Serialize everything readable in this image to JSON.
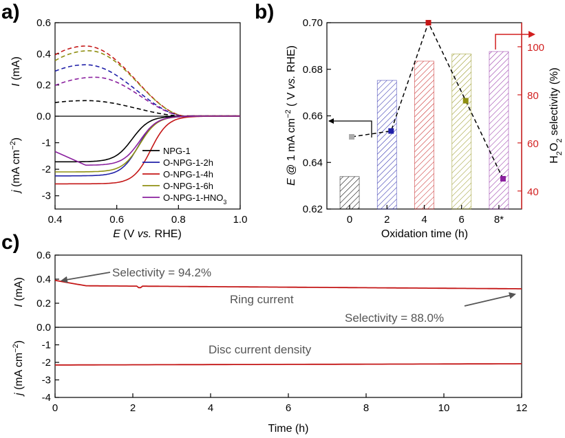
{
  "panels": {
    "a": "a)",
    "b": "b)",
    "c": "c)"
  },
  "colors": {
    "black": "#000000",
    "blue": "#1f1fa8",
    "red": "#c41616",
    "olive": "#8f8f12",
    "purple": "#8a1f9e",
    "accent_red": "#d21f1f",
    "annotation": "#555555",
    "gray_marker": "#aaaaaa"
  },
  "chart_data": [
    {
      "id": "a",
      "type": "line",
      "title": "",
      "xlabel": {
        "var": "E",
        "open": " (V ",
        "vs": "vs.",
        "close": " RHE)"
      },
      "xlim": [
        0.4,
        1.0
      ],
      "xticks": [
        "0.4",
        "0.6",
        "0.8",
        "1.0"
      ],
      "top": {
        "ylabel": {
          "var": "I",
          "unit": " (mA)"
        },
        "ylim": [
          0,
          0.6
        ],
        "yticks": [
          "0.0",
          "0.2",
          "0.4",
          "0.6"
        ],
        "style": "dashed",
        "series": [
          {
            "name": "NPG-1",
            "color": "#000000",
            "peak": 0.1,
            "peak_x": 0.5
          },
          {
            "name": "O-NPG-1-2h",
            "color": "#1f1fa8",
            "peak": 0.33,
            "peak_x": 0.5
          },
          {
            "name": "O-NPG-1-4h",
            "color": "#c41616",
            "peak": 0.45,
            "peak_x": 0.5
          },
          {
            "name": "O-NPG-1-6h",
            "color": "#8f8f12",
            "peak": 0.42,
            "peak_x": 0.51
          },
          {
            "name": "O-NPG-1-HNO3",
            "color": "#8a1f9e",
            "peak": 0.25,
            "peak_x": 0.53
          }
        ]
      },
      "bottom": {
        "ylabel": {
          "var": "j",
          "unit": " (mA cm",
          "sup": "−2",
          "close": ")"
        },
        "ylim": [
          -3.5,
          0
        ],
        "yticks": [
          "-1",
          "-2",
          "-3"
        ],
        "series": [
          {
            "name": "NPG-1",
            "color": "#000000",
            "limit": -1.72,
            "onset": 0.72
          },
          {
            "name": "O-NPG-1-2h",
            "color": "#1f1fa8",
            "limit": -2.25,
            "onset": 0.74
          },
          {
            "name": "O-NPG-1-4h",
            "color": "#c41616",
            "limit": -2.55,
            "onset": 0.78
          },
          {
            "name": "O-NPG-1-6h",
            "color": "#8f8f12",
            "limit": -2.1,
            "onset": 0.745
          },
          {
            "name": "O-NPG-1-HNO3",
            "color": "#8a1f9e",
            "limit": -1.85,
            "onset": 0.745
          }
        ]
      },
      "legend": [
        {
          "label": "NPG-1",
          "sub": "",
          "color": "#000000"
        },
        {
          "label": "O-NPG-1-2h",
          "sub": "",
          "color": "#1f1fa8"
        },
        {
          "label": "O-NPG-1-4h",
          "sub": "",
          "color": "#c41616"
        },
        {
          "label": "O-NPG-1-6h",
          "sub": "",
          "color": "#8f8f12"
        },
        {
          "label": "O-NPG-1-HNO",
          "sub": "3",
          "color": "#8a1f9e"
        }
      ]
    },
    {
      "id": "b",
      "type": "bar",
      "xlabel": "Oxidation time (h)",
      "categories": [
        "0",
        "2",
        "4",
        "6",
        "8*"
      ],
      "bar_colors": [
        "#000000",
        "#1f1fa8",
        "#c41616",
        "#8f8f12",
        "#8a1f9e"
      ],
      "point_colors": [
        "#aaaaaa",
        "#1f1fa8",
        "#c41616",
        "#8f8f12",
        "#8a1f9e"
      ],
      "ylabel_left": {
        "var": "E",
        "mid": " @ 1 mA cm",
        "sup": "−2",
        "open": " ( V ",
        "vs": "vs.",
        "close": " RHE)"
      },
      "ylim_left": [
        0.62,
        0.7
      ],
      "yticks_left": [
        "0.62",
        "0.64",
        "0.66",
        "0.68",
        "0.70"
      ],
      "ylabel_right": {
        "pre": "H",
        "sub1": "2",
        "mid": "O",
        "sub2": "2",
        "post": " selectivity (%)"
      },
      "ylim_right": [
        32.5,
        110
      ],
      "yticks_right": [
        "40",
        "60",
        "80",
        "100"
      ],
      "selectivity": [
        46,
        86,
        94,
        97,
        98
      ],
      "potential": [
        0.651,
        0.6535,
        0.7,
        0.6665,
        0.633
      ]
    },
    {
      "id": "c",
      "type": "line",
      "xlabel": "Time (h)",
      "xlim": [
        0,
        12
      ],
      "xticks": [
        "0",
        "2",
        "4",
        "6",
        "8",
        "10",
        "12"
      ],
      "top": {
        "ylabel": {
          "var": "I",
          "unit": " (mA)"
        },
        "ylim": [
          0,
          0.6
        ],
        "yticks": [
          "0.0",
          "0.2",
          "0.4",
          "0.6"
        ],
        "series_name": "Ring current",
        "start": 0.39,
        "plateau": 0.345,
        "end": 0.32
      },
      "bottom": {
        "ylabel": {
          "var": "j",
          "unit": " (mA cm",
          "sup": "−2",
          "close": ")"
        },
        "ylim": [
          -4,
          0
        ],
        "yticks": [
          "-1",
          "-2",
          "-3",
          "-4"
        ],
        "series_name": "Disc current density",
        "start": -2.15,
        "end": -2.08
      },
      "annotations": [
        "Selectivity = 94.2%",
        "Ring current",
        "Selectivity = 88.0%",
        "Disc current density"
      ]
    }
  ]
}
